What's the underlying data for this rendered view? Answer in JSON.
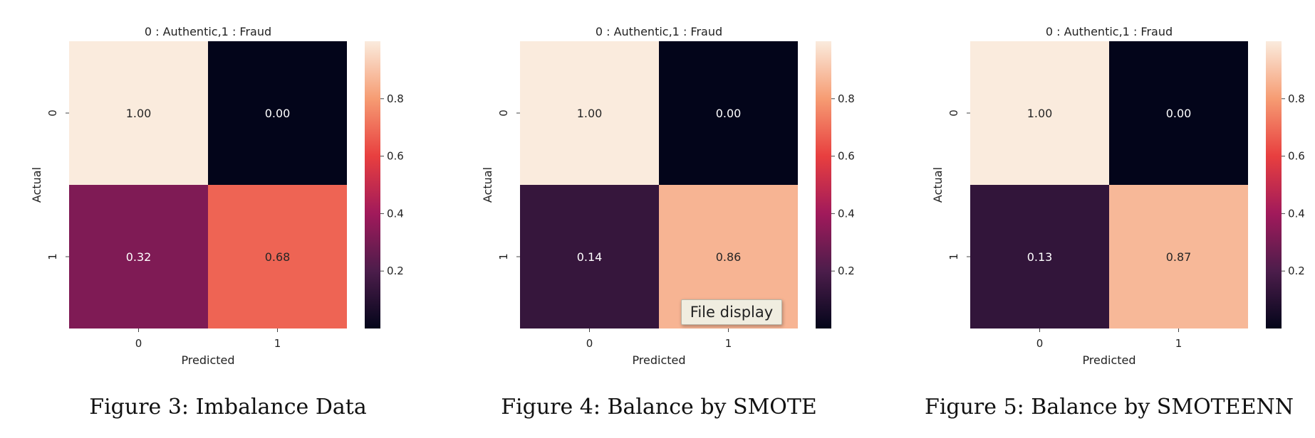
{
  "chart_data": [
    {
      "type": "heatmap",
      "title": "0 : Authentic,1 : Fraud",
      "xlabel": "Predicted",
      "ylabel": "Actual",
      "x_categories": [
        "0",
        "1"
      ],
      "y_categories": [
        "0",
        "1"
      ],
      "values": [
        [
          1.0,
          0.0
        ],
        [
          0.32,
          0.68
        ]
      ],
      "value_labels": [
        [
          "1.00",
          "0.00"
        ],
        [
          "0.32",
          "0.68"
        ]
      ],
      "colorbar": {
        "range": [
          0,
          1
        ],
        "ticks": [
          "0.2",
          "0.4",
          "0.6",
          "0.8"
        ],
        "colormap": "rocket"
      },
      "caption": "Figure 3:  Imbalance Data"
    },
    {
      "type": "heatmap",
      "title": "0 : Authentic,1 : Fraud",
      "xlabel": "Predicted",
      "ylabel": "Actual",
      "x_categories": [
        "0",
        "1"
      ],
      "y_categories": [
        "0",
        "1"
      ],
      "values": [
        [
          1.0,
          0.0
        ],
        [
          0.14,
          0.86
        ]
      ],
      "value_labels": [
        [
          "1.00",
          "0.00"
        ],
        [
          "0.14",
          "0.86"
        ]
      ],
      "colorbar": {
        "range": [
          0,
          1
        ],
        "ticks": [
          "0.2",
          "0.4",
          "0.6",
          "0.8"
        ],
        "colormap": "rocket"
      },
      "caption": "Figure 4:  Balance by SMOTE"
    },
    {
      "type": "heatmap",
      "title": "0 : Authentic,1 : Fraud",
      "xlabel": "Predicted",
      "ylabel": "Actual",
      "x_categories": [
        "0",
        "1"
      ],
      "y_categories": [
        "0",
        "1"
      ],
      "values": [
        [
          1.0,
          0.0
        ],
        [
          0.13,
          0.87
        ]
      ],
      "value_labels": [
        [
          "1.00",
          "0.00"
        ],
        [
          "0.13",
          "0.87"
        ]
      ],
      "colorbar": {
        "range": [
          0,
          1
        ],
        "ticks": [
          "0.2",
          "0.4",
          "0.6",
          "0.8"
        ],
        "colormap": "rocket"
      },
      "caption": "Figure 5:  Balance by SMOTEENN"
    }
  ],
  "tooltip": {
    "label": "File display"
  },
  "colors": {
    "rocket_stops": [
      "#03051a",
      "#4c1d4b",
      "#a11a5b",
      "#e83f3f",
      "#f69c73",
      "#faebdd"
    ]
  }
}
